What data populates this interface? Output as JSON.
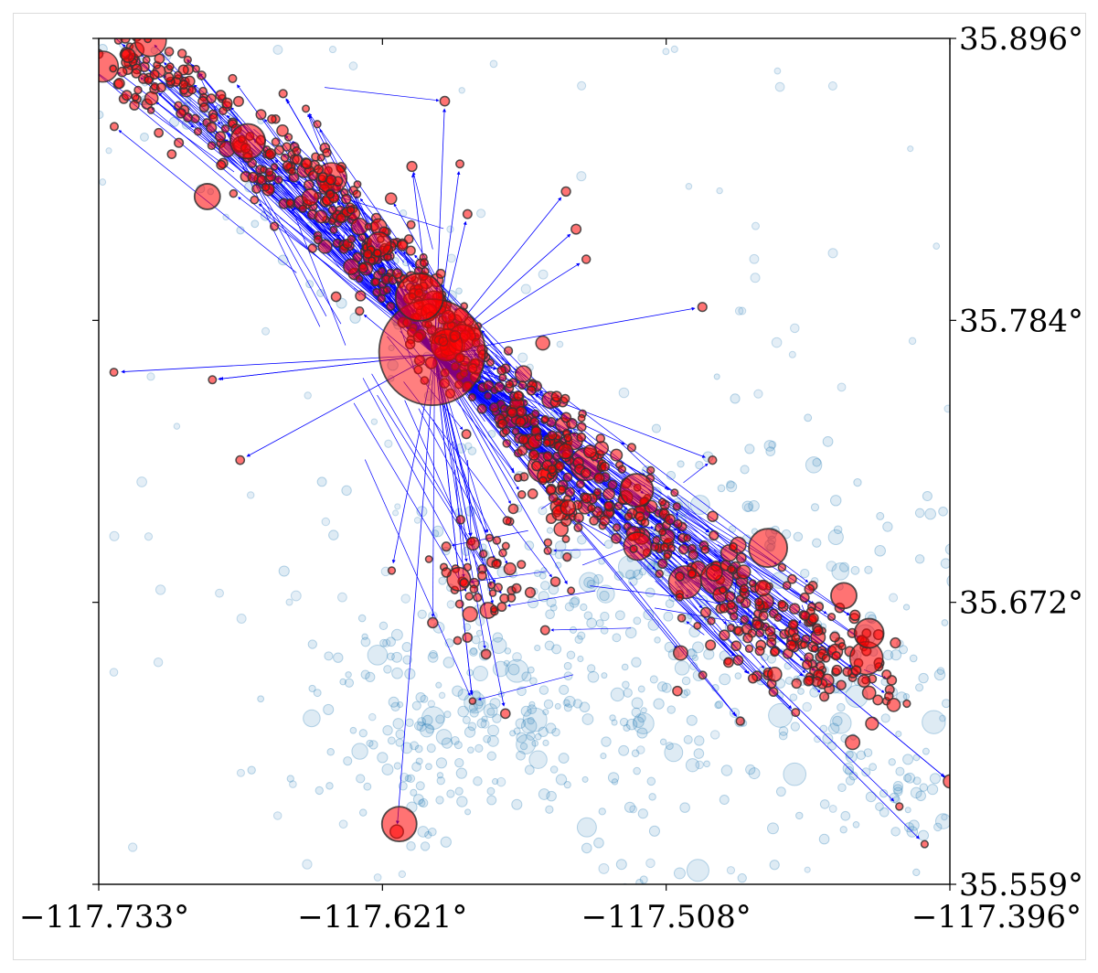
{
  "chart_data": {
    "type": "scatter",
    "title": "",
    "xlabel": "",
    "ylabel": "",
    "xlim": [
      -117.733,
      -117.396
    ],
    "ylim": [
      35.559,
      35.896
    ],
    "x_ticks": [
      "−117.733°",
      "−117.621°",
      "−117.508°",
      "−117.396°"
    ],
    "y_ticks": [
      "35.896°",
      "35.784°",
      "35.672°",
      "35.559°"
    ],
    "y_axis_side": "right",
    "grid": false,
    "legend": "none",
    "colors": {
      "background_events": "#1f77b4",
      "triggered_events": "#ff0000",
      "arrows": "#0000ff"
    },
    "mainshock": {
      "lon": -117.6,
      "lat": 35.77,
      "size": 10
    },
    "linked_events": [
      {
        "lon": -117.727,
        "lat": 35.763
      },
      {
        "lon": -117.688,
        "lat": 35.76
      },
      {
        "lon": -117.677,
        "lat": 35.728
      },
      {
        "lon": -117.494,
        "lat": 35.789
      },
      {
        "lon": -117.615,
        "lat": 35.58
      },
      {
        "lon": -117.585,
        "lat": 35.632
      },
      {
        "lon": -117.572,
        "lat": 35.627
      },
      {
        "lon": -117.577,
        "lat": 35.675
      },
      {
        "lon": -117.617,
        "lat": 35.684
      },
      {
        "lon": -117.567,
        "lat": 35.721
      },
      {
        "lon": -117.596,
        "lat": 35.871
      },
      {
        "lon": -117.59,
        "lat": 35.846
      },
      {
        "lon": -117.609,
        "lat": 35.845
      },
      {
        "lon": -117.635,
        "lat": 35.832
      },
      {
        "lon": -117.54,
        "lat": 35.808
      },
      {
        "lon": -117.544,
        "lat": 35.82
      },
      {
        "lon": -117.548,
        "lat": 35.835
      },
      {
        "lon": -117.587,
        "lat": 35.826
      },
      {
        "lon": -117.416,
        "lat": 35.59
      },
      {
        "lon": -117.406,
        "lat": 35.575
      },
      {
        "lon": -117.396,
        "lat": 35.6
      },
      {
        "lon": -117.474,
        "lat": 35.641
      },
      {
        "lon": -117.452,
        "lat": 35.64
      },
      {
        "lon": -117.479,
        "lat": 35.624
      },
      {
        "lon": -117.441,
        "lat": 35.65
      },
      {
        "lon": -117.43,
        "lat": 35.64
      },
      {
        "lon": -117.49,
        "lat": 35.728
      },
      {
        "lon": -117.5,
        "lat": 35.697
      },
      {
        "lon": -117.505,
        "lat": 35.715
      },
      {
        "lon": -117.47,
        "lat": 35.677
      },
      {
        "lon": -117.522,
        "lat": 35.733
      },
      {
        "lon": -117.553,
        "lat": 35.713
      },
      {
        "lon": -117.546,
        "lat": 35.676
      },
      {
        "lon": -117.45,
        "lat": 35.665
      },
      {
        "lon": -117.66,
        "lat": 35.874
      },
      {
        "lon": -117.645,
        "lat": 35.825
      },
      {
        "lon": -117.665,
        "lat": 35.85
      },
      {
        "lon": -117.7,
        "lat": 35.89
      },
      {
        "lon": -117.68,
        "lat": 35.88
      },
      {
        "lon": -117.651,
        "lat": 35.868
      }
    ]
  }
}
